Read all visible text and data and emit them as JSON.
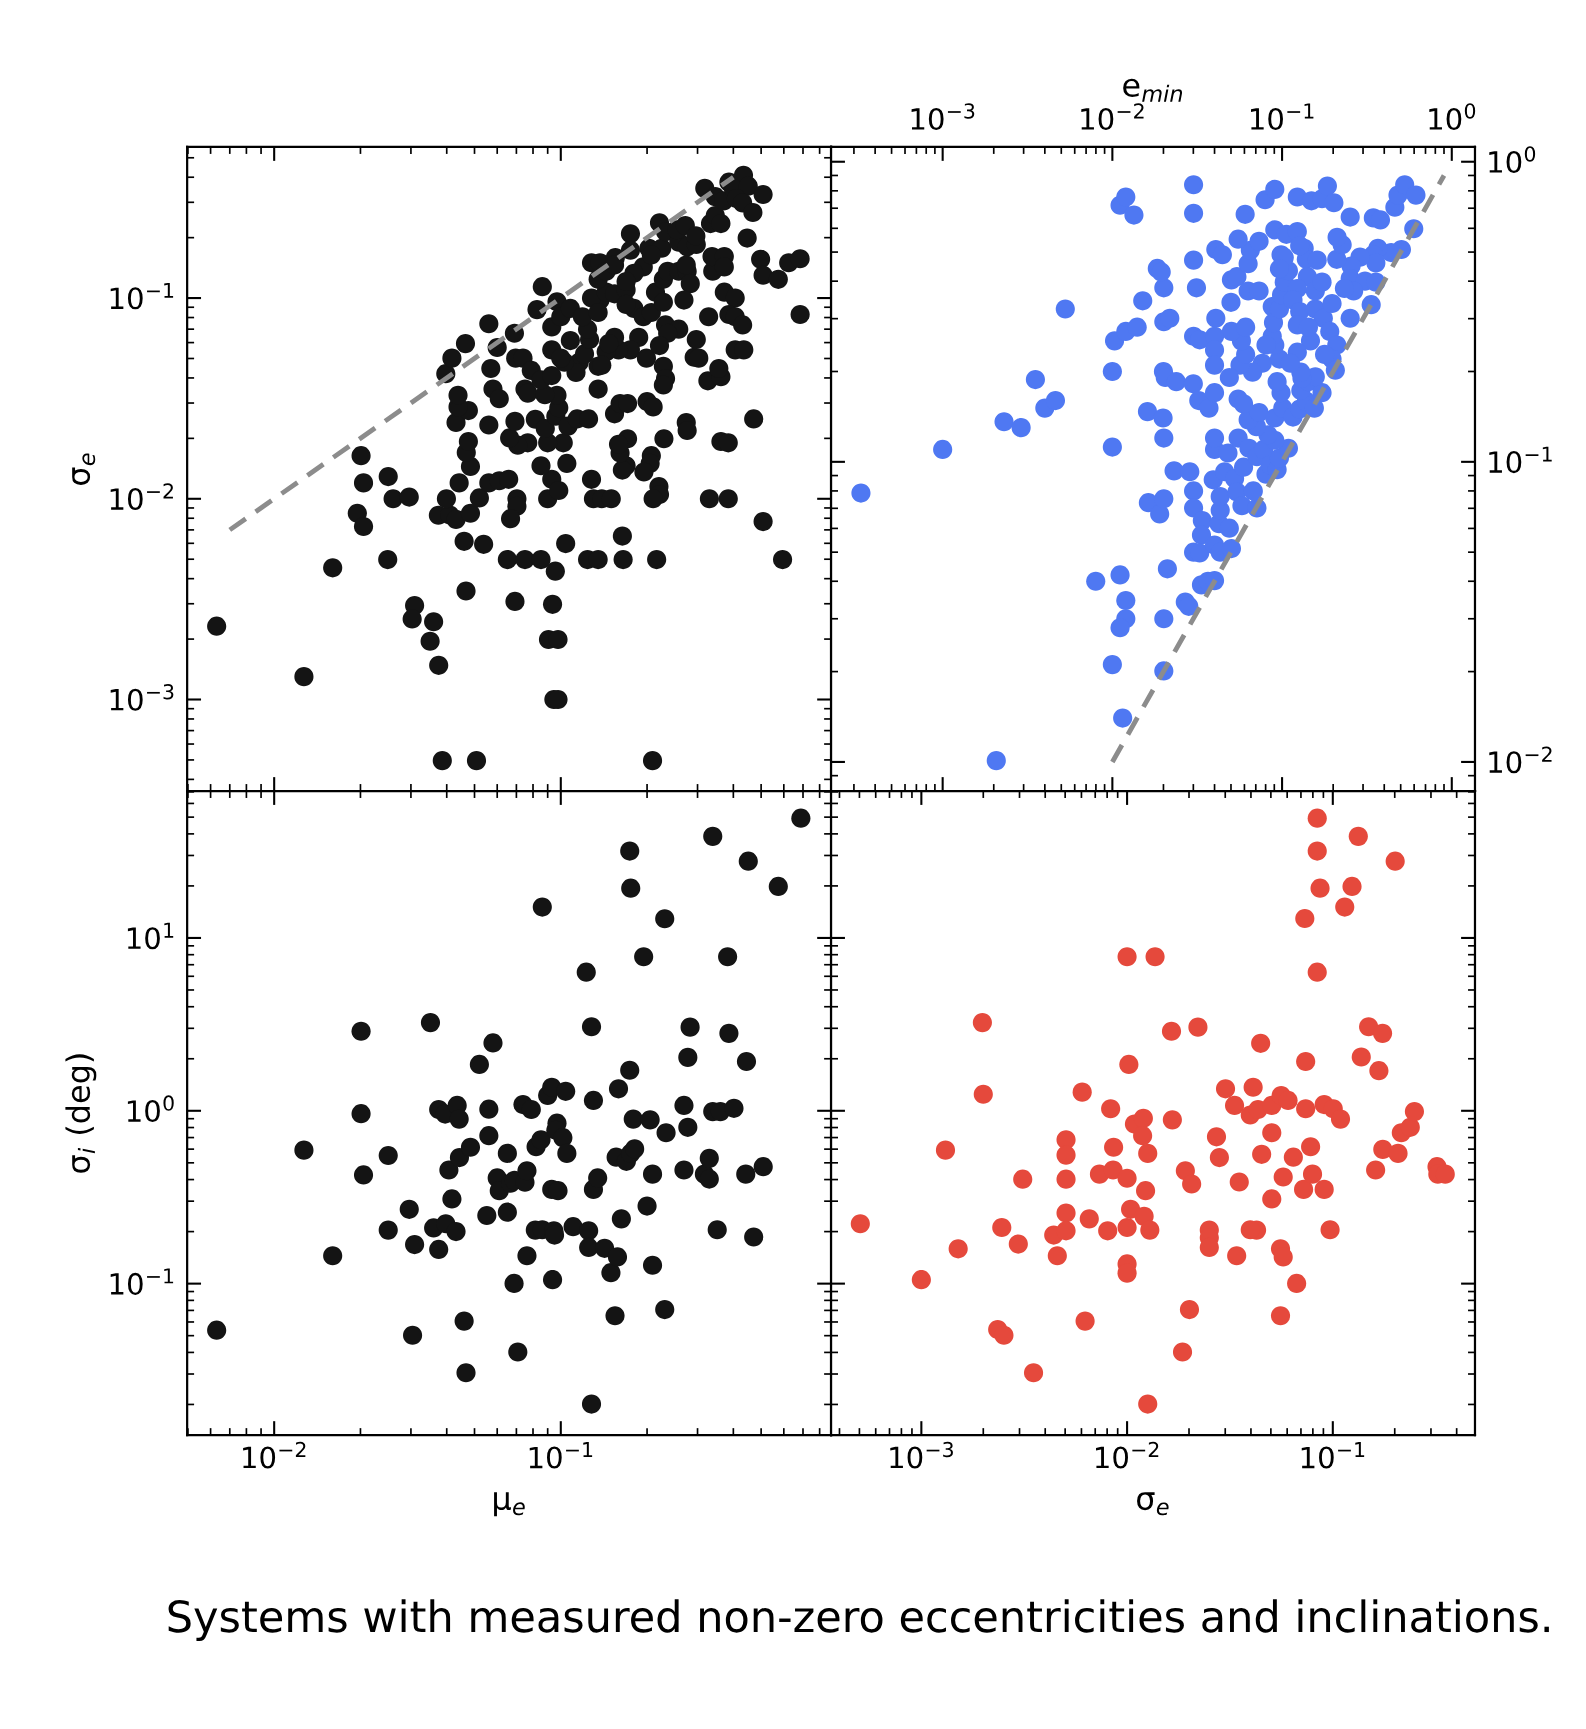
{
  "chart_data": [
    {
      "type": "scatter",
      "ylabel": "σ$_{e}$",
      "annotations": [
        "Systems with measured non-zero eccentricities and inclinations."
      ],
      "log": "xy",
      "marker": "circle",
      "tick_labels": "y",
      "xlim": [
        0.00497,
        0.877
      ],
      "ylim": [
        0.00035,
        0.566
      ],
      "xticks": [
        {
          "value": 0.01,
          "label": null
        },
        {
          "value": 0.1,
          "label": null
        }
      ],
      "yticks": [
        {
          "value": 0.001,
          "label": "10$^{−3}$"
        },
        {
          "value": 0.01,
          "label": "10$^{−2}$"
        },
        {
          "value": 0.1,
          "label": "10$^{−1}$"
        }
      ],
      "series": [
        {
          "color": "#141414",
          "x": [
            0.0063,
            0.0127,
            0.016,
            0.0201,
            0.0205,
            0.0195,
            0.0205,
            0.025,
            0.026,
            0.0249,
            0.0296,
            0.0309,
            0.0303,
            0.036,
            0.035,
            0.0375,
            0.0386,
            0.0508,
            0.209,
            0.0946,
            0.0978,
            0.0906,
            0.0978,
            0.0936,
            0.0692,
            0.0467,
            0.046,
            0.0538,
            0.0374,
            0.041,
            0.0431,
            0.0484,
            0.0399,
            0.052,
            0.0442,
            0.0561,
            0.061,
            0.0658,
            0.0703,
            0.0703,
            0.0668,
            0.0651,
            0.075,
            0.0853,
            0.0957,
            0.104,
            0.09,
            0.093,
            0.0984,
            0.0853,
            0.105,
            0.102,
            0.09,
            0.0767,
            0.0708,
            0.0663,
            0.0561,
            0.0484,
            0.0468,
            0.0476,
            0.0431,
            0.0476,
            0.0438,
            0.0438,
            0.0397,
            0.0417,
            0.0465,
            0.0561,
            0.057,
            0.058,
            0.061,
            0.06,
            0.0689,
            0.0696,
            0.0738,
            0.0789,
            0.075,
            0.0767,
            0.0692,
            0.0815,
            0.0883,
            0.0961,
            0.0984,
            0.106,
            0.114,
            0.125,
            0.097,
            0.088,
            0.0853,
            0.093,
            0.093,
            0.093,
            0.097,
            0.0826,
            0.0862,
            0.1,
            0.108,
            0.108,
            0.116,
            0.113,
            0.103,
            0.1,
            0.121,
            0.126,
            0.124,
            0.119,
            0.137,
            0.128,
            0.135,
            0.144,
            0.154,
            0.135,
            0.128,
            0.137,
            0.144,
            0.155,
            0.175,
            0.175,
            0.203,
            0.225,
            0.221,
            0.232,
            0.194,
            0.18,
            0.169,
            0.18,
            0.169,
            0.194,
            0.207,
            0.214,
            0.228,
            0.236,
            0.258,
            0.276,
            0.283,
            0.269,
            0.228,
            0.232,
            0.258,
            0.236,
            0.187,
            0.175,
            0.159,
            0.154,
            0.144,
            0.135,
            0.199,
            0.221,
            0.228,
            0.232,
            0.228,
            0.292,
            0.303,
            0.297,
            0.328,
            0.326,
            0.362,
            0.356,
            0.339,
            0.337,
            0.372,
            0.372,
            0.333,
            0.346,
            0.362,
            0.258,
            0.276,
            0.297,
            0.254,
            0.272,
            0.296,
            0.318,
            0.346,
            0.37,
            0.386,
            0.434,
            0.4,
            0.451,
            0.41,
            0.431,
            0.468,
            0.508,
            0.447,
            0.498,
            0.508,
            0.574,
            0.624,
            0.684,
            0.684,
            0.372,
            0.406,
            0.386,
            0.406,
            0.431,
            0.406,
            0.435,
            0.471,
            0.362,
            0.384,
            0.33,
            0.384,
            0.508,
            0.594,
            0.274,
            0.276,
            0.229,
            0.207,
            0.205,
            0.195,
            0.22,
            0.221,
            0.21,
            0.216,
            0.165,
            0.164,
            0.169,
            0.164,
            0.161,
            0.171,
            0.159,
            0.154,
            0.161,
            0.171,
            0.2,
            0.21,
            0.128,
            0.13,
            0.139,
            0.15,
            0.124,
            0.135,
            0.135,
            0.139,
            0.147,
            0.154,
            0.169,
            0.207,
            0.274
          ],
          "values": [
            0.00232,
            0.0013,
            0.00453,
            0.0164,
            0.012,
            0.00847,
            0.00728,
            0.0129,
            0.01,
            0.00498,
            0.0102,
            0.00294,
            0.00252,
            0.00244,
            0.00195,
            0.00148,
            0.000496,
            0.000496,
            0.000496,
            0.001,
            0.001,
            0.00199,
            0.00199,
            0.00298,
            0.00308,
            0.00347,
            0.00614,
            0.00593,
            0.00828,
            0.0083,
            0.00789,
            0.00847,
            0.01,
            0.0101,
            0.012,
            0.012,
            0.0123,
            0.0125,
            0.01,
            0.00918,
            0.00796,
            0.00498,
            0.00498,
            0.00498,
            0.00436,
            0.00598,
            0.01,
            0.0125,
            0.011,
            0.0146,
            0.015,
            0.019,
            0.019,
            0.019,
            0.0185,
            0.0201,
            0.0233,
            0.0145,
            0.017,
            0.0193,
            0.024,
            0.0275,
            0.0287,
            0.0328,
            0.042,
            0.0502,
            0.0593,
            0.0745,
            0.0446,
            0.0352,
            0.0315,
            0.0567,
            0.0668,
            0.0502,
            0.0502,
            0.0436,
            0.0352,
            0.0336,
            0.0243,
            0.0249,
            0.0224,
            0.0258,
            0.0284,
            0.023,
            0.025,
            0.025,
            0.0328,
            0.033,
            0.0391,
            0.0411,
            0.0552,
            0.0718,
            0.0958,
            0.0876,
            0.114,
            0.0807,
            0.0888,
            0.0614,
            0.0479,
            0.0426,
            0.0479,
            0.0502,
            0.0527,
            0.0622,
            0.07,
            0.0807,
            0.0977,
            0.1,
            0.0847,
            0.107,
            0.105,
            0.124,
            0.15,
            0.15,
            0.136,
            0.159,
            0.209,
            0.173,
            0.177,
            0.177,
            0.237,
            0.214,
            0.143,
            0.133,
            0.11,
            0.0888,
            0.093,
            0.0807,
            0.0847,
            0.107,
            0.124,
            0.136,
            0.136,
            0.136,
            0.118,
            0.0977,
            0.0953,
            0.0735,
            0.07,
            0.0668,
            0.0637,
            0.0552,
            0.0552,
            0.0637,
            0.054,
            0.0457,
            0.0502,
            0.058,
            0.0457,
            0.0397,
            0.0369,
            0.0507,
            0.0502,
            0.0622,
            0.0807,
            0.0387,
            0.0406,
            0.0446,
            0.136,
            0.161,
            0.161,
            0.143,
            0.235,
            0.258,
            0.235,
            0.19,
            0.18,
            0.185,
            0.219,
            0.23,
            0.204,
            0.352,
            0.32,
            0.305,
            0.378,
            0.409,
            0.352,
            0.361,
            0.313,
            0.298,
            0.267,
            0.328,
            0.199,
            0.156,
            0.13,
            0.124,
            0.15,
            0.157,
            0.0828,
            0.107,
            0.1,
            0.0828,
            0.0807,
            0.0735,
            0.0552,
            0.0552,
            0.025,
            0.0193,
            0.019,
            0.01,
            0.01,
            0.0077,
            0.00498,
            0.024,
            0.0219,
            0.0199,
            0.0164,
            0.015,
            0.0136,
            0.0115,
            0.0105,
            0.01,
            0.00498,
            0.00498,
            0.00652,
            0.0146,
            0.0139,
            0.0169,
            0.0199,
            0.0187,
            0.0265,
            0.0298,
            0.0298,
            0.0305,
            0.0287,
            0.0125,
            0.01,
            0.01,
            0.01,
            0.00498,
            0.00498,
            0.0352,
            0.0463,
            0.0593,
            0.146,
            0.121,
            0.164,
            0.146
          ]
        },
        {
          "type": "line",
          "marker": "none",
          "color": "#8c8c8c",
          "line_style": "dashed",
          "x": [
            0.007,
            0.4
          ],
          "values": [
            0.007,
            0.4
          ]
        }
      ]
    },
    {
      "type": "scatter",
      "xlabel": "e$_{min}$",
      "log": "xy",
      "marker": "circle",
      "xlim": [
        0.00022,
        1.37
      ],
      "ylim": [
        0.008,
        1.12
      ],
      "xticks": [
        {
          "value": 0.001,
          "label": "10$^{−3}$"
        },
        {
          "value": 0.01,
          "label": "10$^{−2}$"
        },
        {
          "value": 0.1,
          "label": "10$^{−1}$"
        },
        {
          "value": 1,
          "label": "10$^{0}$"
        }
      ],
      "yticks": [
        {
          "value": 0.01,
          "label": "10$^{−2}$"
        },
        {
          "value": 0.1,
          "label": "10$^{−1}$"
        },
        {
          "value": 1,
          "label": "10$^{0}$"
        }
      ],
      "series": [
        {
          "color": "#4f78f2",
          "x": [
            0.00033,
            0.001,
            0.00207,
            0.0023,
            0.0029,
            0.00352,
            0.004,
            0.00462,
            0.00528,
            0.00798,
            0.01,
            0.01,
            0.01,
            0.0103,
            0.0111,
            0.012,
            0.0134,
            0.0111,
            0.012,
            0.012,
            0.0111,
            0.0115,
            0.012,
            0.014,
            0.0151,
            0.0161,
            0.0163,
            0.019,
            0.0201,
            0.0201,
            0.0201,
            0.0211,
            0.0201,
            0.0199,
            0.02,
            0.0205,
            0.0238,
            0.0201,
            0.0218,
            0.0201,
            0.0184,
            0.0194,
            0.0231,
            0.0286,
            0.0301,
            0.0301,
            0.0301,
            0.0301,
            0.0301,
            0.0313,
            0.0301,
            0.0327,
            0.03,
            0.0323,
            0.0371,
            0.0339,
            0.0335,
            0.0301,
            0.0327,
            0.0269,
            0.0282,
            0.0335,
            0.0366,
            0.04,
            0.04,
            0.0432,
            0.0503,
            0.0425,
            0.0489,
            0.0432,
            0.0432,
            0.0393,
            0.0459,
            0.0525,
            0.0542,
            0.0593,
            0.058,
            0.0711,
            0.0677,
            0.0804,
            0.04,
            0.048,
            0.04,
            0.0551,
            0.0638,
            0.0711,
            0.078,
            0.0853,
            0.0935,
            0.0965,
            0.109,
            0.0906,
            0.0826,
            0.0706,
            0.0631,
            0.0732,
            0.0906,
            0.101,
            0.116,
            0.127,
            0.139,
            0.155,
            0.129,
            0.143,
            0.172,
            0.157,
            0.131,
            0.129,
            0.0986,
            0.0935,
            0.0965,
            0.0906,
            0.0875,
            0.089,
            0.0875,
            0.0965,
            0.0993,
            0.103,
            0.109,
            0.0986,
            0.0906,
            0.106,
            0.123,
            0.135,
            0.139,
            0.161,
            0.141,
            0.123,
            0.116,
            0.127,
            0.157,
            0.175,
            0.157,
            0.172,
            0.197,
            0.191,
            0.21,
            0.197,
            0.206,
            0.178,
            0.147,
            0.123,
            0.112,
            0.123,
            0.143,
            0.0804,
            0.0765,
            0.067,
            0.0565,
            0.0489,
            0.061,
            0.0576,
            0.0503,
            0.061,
            0.0407,
            0.04,
            0.04,
            0.04,
            0.04,
            0.0551,
            0.0593,
            0.05,
            0.0503,
            0.0542,
            0.0631,
            0.0732,
            0.0631,
            0.065,
            0.0732,
            0.0551,
            0.0407,
            0.0445,
            0.0606,
            0.0794,
            0.0906,
            0.123,
            0.149,
            0.172,
            0.185,
            0.202,
            0.252,
            0.345,
            0.38,
            0.462,
            0.482,
            0.528,
            0.615,
            0.597,
            0.505,
            0.439,
            0.367,
            0.345,
            0.357,
            0.288,
            0.255,
            0.252,
            0.308,
            0.357,
            0.335,
            0.264,
            0.233,
            0.252,
            0.21,
            0.226,
            0.211,
            0.127,
            0.103,
            0.0965
          ],
          "values": [
            0.0787,
            0.11,
            0.0101,
            0.136,
            0.13,
            0.188,
            0.151,
            0.16,
            0.323,
            0.04,
            0.0211,
            0.112,
            0.2,
            0.253,
            0.716,
            0.763,
            0.664,
            0.042,
            0.0345,
            0.03,
            0.028,
            0.014,
            0.272,
            0.281,
            0.344,
            0.147,
            0.0731,
            0.067,
            0.0753,
            0.03,
            0.0201,
            0.044,
            0.12,
            0.14,
            0.2,
            0.191,
            0.185,
            0.293,
            0.301,
            0.38,
            0.441,
            0.429,
            0.0933,
            0.0927,
            0.08,
            0.0702,
            0.47,
            0.673,
            0.838,
            0.38,
            0.262,
            0.255,
            0.182,
            0.16,
            0.151,
            0.0637,
            0.057,
            0.05,
            0.0497,
            0.0341,
            0.033,
            0.0389,
            0.04,
            0.0402,
            0.0528,
            0.05,
            0.0514,
            0.0622,
            0.0601,
            0.069,
            0.0766,
            0.0871,
            0.0927,
            0.088,
            0.0793,
            0.096,
            0.0714,
            0.0702,
            0.08,
            0.091,
            0.11,
            0.107,
            0.12,
            0.12,
            0.111,
            0.104,
            0.11,
            0.0976,
            0.0942,
            0.103,
            0.111,
            0.118,
            0.123,
            0.131,
            0.138,
            0.146,
            0.14,
            0.151,
            0.141,
            0.15,
            0.159,
            0.151,
            0.173,
            0.185,
            0.17,
            0.192,
            0.19,
            0.199,
            0.17,
            0.185,
            0.22,
            0.245,
            0.262,
            0.291,
            0.329,
            0.323,
            0.36,
            0.397,
            0.433,
            0.49,
            0.593,
            0.573,
            0.585,
            0.515,
            0.473,
            0.47,
            0.414,
            0.378,
            0.346,
            0.317,
            0.323,
            0.301,
            0.371,
            0.397,
            0.337,
            0.272,
            0.245,
            0.22,
            0.202,
            0.228,
            0.253,
            0.232,
            0.213,
            0.286,
            0.281,
            0.245,
            0.213,
            0.199,
            0.21,
            0.191,
            0.228,
            0.253,
            0.272,
            0.281,
            0.301,
            0.262,
            0.236,
            0.21,
            0.17,
            0.162,
            0.156,
            0.34,
            0.404,
            0.414,
            0.371,
            0.371,
            0.457,
            0.507,
            0.543,
            0.552,
            0.51,
            0.49,
            0.668,
            0.747,
            0.809,
            0.763,
            0.741,
            0.753,
            0.83,
            0.73,
            0.654,
            0.65,
            0.64,
            0.705,
            0.774,
            0.838,
            0.774,
            0.598,
            0.51,
            0.498,
            0.515,
            0.49,
            0.46,
            0.481,
            0.449,
            0.408,
            0.4,
            0.397,
            0.334,
            0.371,
            0.378,
            0.301,
            0.473,
            0.529,
            0.56,
            0.525,
            0.48,
            0.44
          ]
        },
        {
          "type": "line",
          "marker": "none",
          "color": "#8c8c8c",
          "line_style": "dashed",
          "x": [
            0.01,
            0.9
          ],
          "values": [
            0.01,
            0.9
          ]
        }
      ]
    },
    {
      "type": "scatter",
      "xlabel": "μ$_{e}$",
      "ylabel": "σ$_{i}$ (deg)",
      "log": "xy",
      "marker": "circle",
      "xlim": [
        0.00497,
        0.877
      ],
      "ylim": [
        0.0133,
        70.8
      ],
      "xticks": [
        {
          "value": 0.01,
          "label": "10$^{−2}$"
        },
        {
          "value": 0.1,
          "label": "10$^{−1}$"
        }
      ],
      "yticks": [
        {
          "value": 0.1,
          "label": "10$^{−1}$"
        },
        {
          "value": 1,
          "label": "10$^{0}$"
        },
        {
          "value": 10,
          "label": "10$^{1}$"
        }
      ],
      "series": [
        {
          "color": "#141414",
          "x": [
            0.0063,
            0.0127,
            0.016,
            0.0201,
            0.0201,
            0.0205,
            0.025,
            0.025,
            0.0296,
            0.0309,
            0.0304,
            0.0351,
            0.036,
            0.0375,
            0.0375,
            0.0395,
            0.0397,
            0.0407,
            0.0417,
            0.0431,
            0.0435,
            0.0442,
            0.0443,
            0.046,
            0.0467,
            0.0484,
            0.052,
            0.0552,
            0.0561,
            0.0561,
            0.058,
            0.06,
            0.061,
            0.0651,
            0.0651,
            0.0668,
            0.0689,
            0.0687,
            0.0708,
            0.0738,
            0.075,
            0.0762,
            0.0762,
            0.0789,
            0.082,
            0.0853,
            0.0815,
            0.0862,
            0.0862,
            0.09,
            0.093,
            0.093,
            0.0978,
            0.0946,
            0.0951,
            0.0936,
            0.097,
            0.0961,
            0.1017,
            0.105,
            0.104,
            0.1104,
            0.1227,
            0.128,
            0.13,
            0.13,
            0.1345,
            0.1251,
            0.1251,
            0.128,
            0.1422,
            0.1496,
            0.1546,
            0.1577,
            0.156,
            0.159,
            0.1627,
            0.1694,
            0.174,
            0.174,
            0.1754,
            0.1754,
            0.181,
            0.179,
            0.1946,
            0.2,
            0.205,
            0.209,
            0.209,
            0.2305,
            0.2305,
            0.233,
            0.269,
            0.269,
            0.2775,
            0.2775,
            0.2826,
            0.317,
            0.3297,
            0.3297,
            0.339,
            0.3605,
            0.339,
            0.3514,
            0.382,
            0.386,
            0.402,
            0.442,
            0.4445,
            0.451,
            0.471,
            0.5085,
            0.574,
            0.688
          ],
          "values": [
            0.0538,
            0.592,
            0.145,
            2.884,
            0.962,
            0.4255,
            0.551,
            0.204,
            0.269,
            0.1683,
            0.0503,
            3.237,
            0.21,
            0.1577,
            1.017,
            0.957,
            0.222,
            0.4545,
            0.309,
            0.2,
            1.074,
            0.895,
            0.536,
            0.0607,
            0.0305,
            0.615,
            1.855,
            0.248,
            0.718,
            1.022,
            2.47,
            0.409,
            0.345,
            0.567,
            0.259,
            0.381,
            0.396,
            0.1003,
            0.0402,
            1.086,
            0.386,
            0.45,
            0.145,
            1.017,
            0.619,
            0.68,
            0.204,
            0.205,
            15.08,
            1.226,
            1.369,
            0.351,
            0.345,
            0.202,
            0.191,
            0.1054,
            0.848,
            0.772,
            0.699,
            0.567,
            1.296,
            0.2135,
            6.34,
            3.063,
            1.148,
            0.351,
            0.409,
            0.202,
            0.162,
            0.0201,
            0.16,
            0.1157,
            0.0652,
            0.1427,
            0.539,
            1.34,
            0.237,
            0.51,
            1.717,
            31.8,
            19.4,
            0.567,
            0.602,
            0.895,
            7.78,
            0.281,
            0.886,
            0.43,
            0.1278,
            0.0708,
            12.92,
            0.7465,
            0.4545,
            1.074,
            0.802,
            2.037,
            3.048,
            0.43,
            0.5305,
            0.4025,
            0.989,
            0.989,
            38.7,
            0.205,
            7.78,
            2.805,
            1.033,
            0.43,
            1.928,
            27.8,
            0.186,
            0.475,
            19.87,
            49.3
          ]
        }
      ]
    },
    {
      "type": "scatter",
      "xlabel": "σ$_{e}$",
      "log": "xy",
      "marker": "circle",
      "tick_labels": "x",
      "xlim": [
        0.000364,
        0.491
      ],
      "ylim": [
        0.0133,
        70.8
      ],
      "xticks": [
        {
          "value": 0.001,
          "label": "10$^{−3}$"
        },
        {
          "value": 0.01,
          "label": "10$^{−2}$"
        },
        {
          "value": 0.1,
          "label": "10$^{−1}$"
        }
      ],
      "yticks": [
        {
          "value": 0.1,
          "label": null
        },
        {
          "value": 1,
          "label": null
        },
        {
          "value": 10,
          "label": null
        }
      ],
      "series": [
        {
          "color": "#e5493c",
          "x": [
            0.000505,
            0.001,
            0.00131,
            0.00151,
            0.00198,
            0.002,
            0.00235,
            0.00252,
            0.00246,
            0.00296,
            0.00311,
            0.00351,
            0.0044,
            0.00458,
            0.00505,
            0.00505,
            0.00505,
            0.00505,
            0.00505,
            0.00605,
            0.00625,
            0.00655,
            0.00734,
            0.00805,
            0.00832,
            0.00855,
            0.0086,
            0.01,
            0.0102,
            0.01,
            0.0104,
            0.01,
            0.01,
            0.01,
            0.01086,
            0.012,
            0.0119,
            0.0126,
            0.0123,
            0.0121,
            0.0129,
            0.0126,
            0.01368,
            0.01644,
            0.0166,
            0.0192,
            0.0206,
            0.0201,
            0.0186,
            0.0221,
            0.0251,
            0.0251,
            0.0251,
            0.0272,
            0.0281,
            0.0301,
            0.0333,
            0.0351,
            0.0341,
            0.0397,
            0.041,
            0.0426,
            0.0397,
            0.0433,
            0.0446,
            0.0451,
            0.0505,
            0.0505,
            0.0505,
            0.0561,
            0.0606,
            0.0574,
            0.0557,
            0.0574,
            0.0557,
            0.0643,
            0.0667,
            0.0721,
            0.0738,
            0.0738,
            0.0731,
            0.078,
            0.0797,
            0.084,
            0.084,
            0.084,
            0.0867,
            0.0908,
            0.0908,
            0.1005,
            0.097,
            0.109,
            0.1143,
            0.124,
            0.133,
            0.1375,
            0.1493,
            0.1615,
            0.1675,
            0.1745,
            0.175,
            0.201,
            0.2075,
            0.2153,
            0.238,
            0.2493,
            0.321,
            0.324,
            0.352
          ],
          "values": [
            0.222,
            0.1054,
            0.592,
            0.159,
            3.237,
            1.247,
            0.0543,
            0.0503,
            0.2113,
            0.1694,
            0.402,
            0.0305,
            0.191,
            0.145,
            0.68,
            0.554,
            0.402,
            0.256,
            0.202,
            1.282,
            0.0607,
            0.237,
            0.43,
            0.202,
            1.028,
            0.4545,
            0.615,
            7.78,
            1.855,
            0.407,
            0.269,
            0.2113,
            0.13,
            0.115,
            0.838,
            0.905,
            0.718,
            0.567,
            0.345,
            0.245,
            0.204,
            0.0201,
            7.78,
            2.884,
            0.886,
            0.45,
            0.377,
            0.0708,
            0.0402,
            3.048,
            0.204,
            0.184,
            0.162,
            0.707,
            0.536,
            1.34,
            1.074,
            0.387,
            0.145,
            0.946,
            1.369,
            0.204,
            0.205,
            1.017,
            2.457,
            0.56,
            0.7465,
            1.074,
            0.309,
            1.226,
            1.148,
            0.414,
            0.159,
            0.1427,
            0.0652,
            0.539,
            0.1003,
            0.351,
            1.928,
            1.028,
            12.96,
            0.619,
            0.43,
            49.3,
            31.8,
            6.34,
            19.4,
            1.086,
            0.351,
            1.028,
            0.205,
            0.895,
            15.08,
            19.87,
            38.7,
            2.048,
            3.063,
            0.4545,
            1.707,
            2.805,
            0.598,
            27.8,
            0.567,
            0.7465,
            0.802,
            0.989,
            0.475,
            0.43,
            0.43
          ]
        }
      ]
    }
  ]
}
